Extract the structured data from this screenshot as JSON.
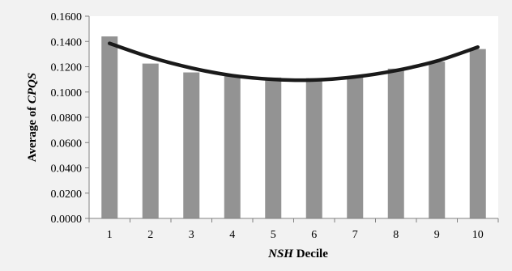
{
  "chart_data": {
    "type": "bar",
    "categories": [
      "1",
      "2",
      "3",
      "4",
      "5",
      "6",
      "7",
      "8",
      "9",
      "10"
    ],
    "series": [
      {
        "values": [
          0.144,
          0.1225,
          0.1155,
          0.1125,
          0.1115,
          0.111,
          0.112,
          0.1185,
          0.124,
          0.134
        ]
      }
    ],
    "trendline": {
      "type": "polynomial",
      "values": [
        0.1385,
        0.1275,
        0.119,
        0.113,
        0.11,
        0.1095,
        0.112,
        0.117,
        0.1245,
        0.1355
      ]
    },
    "title": "",
    "xlabel": {
      "italic": "NSH",
      "rest": " Decile"
    },
    "ylabel": {
      "rest": "Average of ",
      "italic": "CPQS"
    },
    "ylim": [
      0,
      0.16
    ],
    "yticks": [
      "0.0000",
      "0.0200",
      "0.0400",
      "0.0600",
      "0.0800",
      "0.1000",
      "0.1200",
      "0.1400",
      "0.1600"
    ],
    "grid": false,
    "legend": "none",
    "colors": {
      "bar": "#939393",
      "trendline": "#1a1a1a",
      "plot_bg": "#ffffff",
      "page_bg": "#f2f2f2"
    }
  }
}
